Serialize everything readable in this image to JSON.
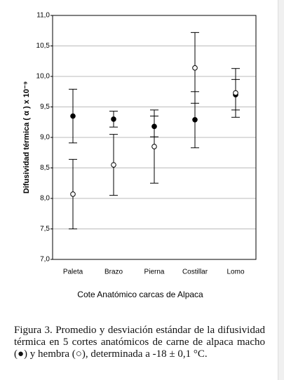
{
  "chart_data": {
    "type": "scatter",
    "categories": [
      "Paleta",
      "Brazo",
      "Pierna",
      "Costillar",
      "Lomo"
    ],
    "series": [
      {
        "marker": "filled",
        "color": "#000000",
        "values": [
          9.35,
          9.3,
          9.18,
          9.29,
          9.7
        ],
        "errors": [
          0.44,
          0.13,
          0.17,
          0.46,
          0.25
        ]
      },
      {
        "marker": "open",
        "color": "#000000",
        "values": [
          8.07,
          8.55,
          8.85,
          10.14,
          9.73
        ],
        "errors": [
          0.57,
          0.5,
          0.6,
          0.58,
          0.4
        ]
      }
    ],
    "ylim": [
      7.0,
      11.0
    ],
    "yticks": [
      {
        "value": 7.0,
        "label": "7,0"
      },
      {
        "value": 7.5,
        "label": "7,5"
      },
      {
        "value": 8.0,
        "label": "8,0"
      },
      {
        "value": 8.5,
        "label": "8,5"
      },
      {
        "value": 9.0,
        "label": "9,0"
      },
      {
        "value": 9.5,
        "label": "9,5"
      },
      {
        "value": 10.0,
        "label": "10,0"
      },
      {
        "value": 10.5,
        "label": "10,5"
      },
      {
        "value": 11.0,
        "label": "11,0"
      }
    ],
    "grid": true,
    "ylabel": "Difusividad térmica (  α ) x 10⁻⁹",
    "xlabel": "Cote Anatómico carcas de Alpaca",
    "caption": "Figura 3. Promedio y desviación estándar de la difusividad térmica en 5 cortes anatómicos de carne de alpaca macho (●) y hembra (○), determinada a -18 ± 0,1 °C."
  }
}
